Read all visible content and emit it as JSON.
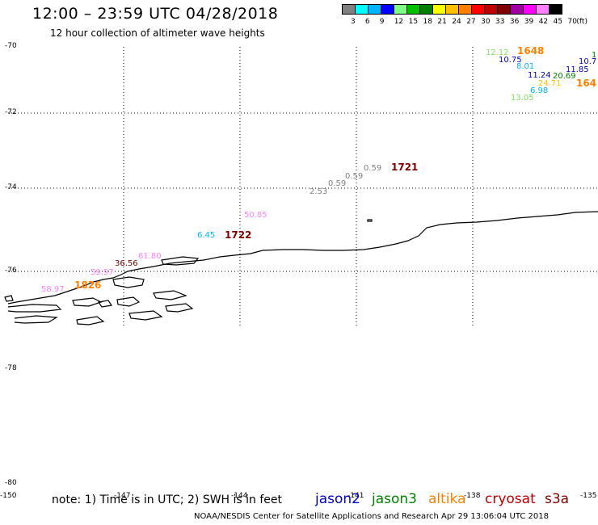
{
  "header": {
    "title": "12:00 – 23:59 UTC 04/28/2018",
    "subtitle": "12 hour collection of altimeter wave heights"
  },
  "color_scale": {
    "colors": [
      "#808080",
      "#00ffff",
      "#00b4ff",
      "#0000ff",
      "#80ff80",
      "#00c000",
      "#008000",
      "#ffff00",
      "#ffc000",
      "#ff8000",
      "#ff0000",
      "#c00000",
      "#800000",
      "#a000a0",
      "#ff00ff",
      "#ff80ff",
      "#000000"
    ],
    "labels": [
      "3",
      "6",
      "9",
      "12",
      "15",
      "18",
      "21",
      "24",
      "27",
      "30",
      "33",
      "36",
      "39",
      "42",
      "45",
      "70",
      "(ft)"
    ]
  },
  "axes": {
    "lat_labels": [
      "-70",
      "-72",
      "-74",
      "-76",
      "-78",
      "-80"
    ],
    "lon_labels": [
      "-150",
      "-147",
      "-144",
      "-141",
      "-138",
      "-135"
    ]
  },
  "measurements": [
    {
      "text": "12.12",
      "color": "#80e060"
    },
    {
      "text": "10.75",
      "color": "#0000c0"
    },
    {
      "text": "8.01",
      "color": "#00b4ff"
    },
    {
      "text": "11.24",
      "color": "#0000c0"
    },
    {
      "text": "20.69",
      "color": "#008000"
    },
    {
      "text": "24.71",
      "color": "#ffc000"
    },
    {
      "text": "6.98",
      "color": "#00b4ff"
    },
    {
      "text": "13.05",
      "color": "#80e060"
    },
    {
      "text": "11.85",
      "color": "#0000c0"
    },
    {
      "text": "10.7",
      "color": "#0000c0"
    },
    {
      "text": "1",
      "color": "#008000"
    },
    {
      "text": "0.59",
      "color": "#808080"
    },
    {
      "text": "0.59",
      "color": "#808080"
    },
    {
      "text": "0.59",
      "color": "#808080"
    },
    {
      "text": "2.53",
      "color": "#808080"
    },
    {
      "text": "50.85",
      "color": "#ff80ff"
    },
    {
      "text": "6.45",
      "color": "#00b4ff"
    },
    {
      "text": "61.80",
      "color": "#ff80ff"
    },
    {
      "text": "36.56",
      "color": "#800000"
    },
    {
      "text": "58.97",
      "color": "#ff80ff"
    },
    {
      "text": "59.97",
      "color": "#ff80ff"
    }
  ],
  "pass_times": [
    {
      "text": "1648",
      "color": "#ff8000"
    },
    {
      "text": "164",
      "color": "#ff8000"
    },
    {
      "text": "1721",
      "color": "#800000"
    },
    {
      "text": "1722",
      "color": "#800000"
    },
    {
      "text": "1826",
      "color": "#ff8000"
    }
  ],
  "footer": {
    "note": "note:  1) Time is in UTC;  2) SWH is in feet",
    "credit": "NOAA/NESDIS Center for Satellite Applications and Research    Apr 29 13:06:04 UTC 2018"
  },
  "legend": [
    {
      "name": "jason2",
      "color": "#0000c0"
    },
    {
      "name": "jason3",
      "color": "#008000"
    },
    {
      "name": "altika",
      "color": "#ff8000"
    },
    {
      "name": "cryosat",
      "color": "#c00000"
    },
    {
      "name": "s3a",
      "color": "#800000"
    }
  ]
}
